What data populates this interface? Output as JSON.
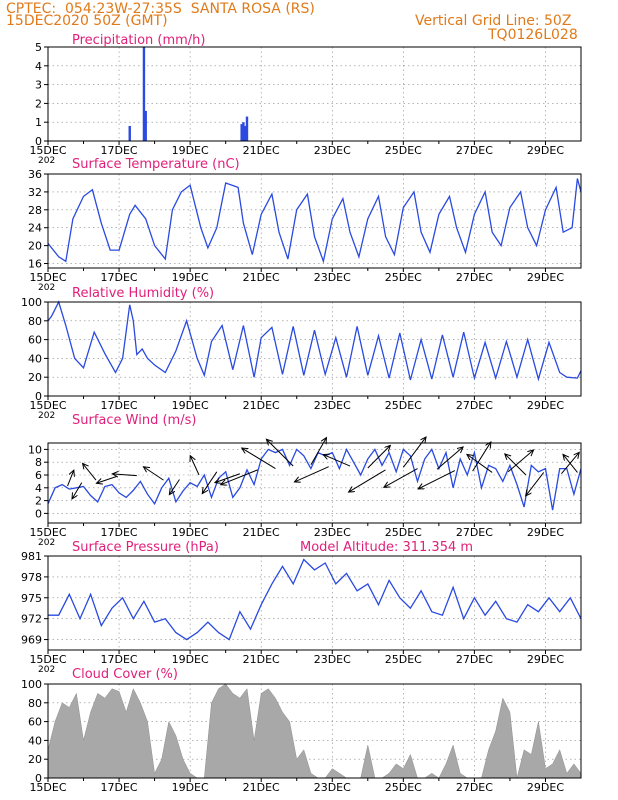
{
  "header": {
    "line1": "CPTEC:  054:23W-27:35S  SANTA ROSA (RS)",
    "line2": "15DEC2020 50Z (GMT)",
    "grid_note": "Vertical Grid Line: 50Z",
    "code": "TQ0126L028"
  },
  "colors": {
    "header": "#e07a1a",
    "title": "#e0207a",
    "series": "#2a4ae0",
    "cloud": "#a8a8a8",
    "axis": "#000000"
  },
  "x_axis": {
    "ticks": [
      {
        "day": 15,
        "label": "15DEC"
      },
      {
        "day": 17,
        "label": "17DEC"
      },
      {
        "day": 19,
        "label": "19DEC"
      },
      {
        "day": 21,
        "label": "21DEC"
      },
      {
        "day": 23,
        "label": "23DEC"
      },
      {
        "day": 25,
        "label": "25DEC"
      },
      {
        "day": 27,
        "label": "27DEC"
      },
      {
        "day": 29,
        "label": "29DEC"
      }
    ],
    "range": [
      15,
      30
    ],
    "sub_label": "202"
  },
  "chart_data": [
    {
      "type": "bar",
      "title": "Precipitation  (mm/h)",
      "ylim": [
        0,
        5
      ],
      "yticks": [
        "0",
        "1",
        "2",
        "3",
        "4",
        "5"
      ],
      "x": [
        17.3,
        17.7,
        17.75,
        20.45,
        20.5,
        20.55,
        20.6
      ],
      "values": [
        0.8,
        5.0,
        1.6,
        0.9,
        1.0,
        0.8,
        1.3
      ]
    },
    {
      "type": "line",
      "title": "Surface Temperature (nC)",
      "ylim": [
        15,
        36
      ],
      "yticks": [
        "16",
        "20",
        "24",
        "28",
        "32",
        "36"
      ],
      "ytick_values": [
        16,
        20,
        24,
        28,
        32,
        36
      ],
      "x": [
        15.0,
        15.3,
        15.5,
        15.7,
        16.0,
        16.25,
        16.5,
        16.75,
        17.0,
        17.3,
        17.45,
        17.55,
        17.75,
        18.0,
        18.3,
        18.5,
        18.75,
        19.0,
        19.3,
        19.5,
        19.75,
        20.0,
        20.35,
        20.5,
        20.75,
        21.0,
        21.3,
        21.5,
        21.75,
        22.0,
        22.3,
        22.5,
        22.75,
        23.0,
        23.3,
        23.5,
        23.75,
        24.0,
        24.3,
        24.5,
        24.75,
        25.0,
        25.3,
        25.5,
        25.75,
        26.0,
        26.3,
        26.5,
        26.75,
        27.0,
        27.3,
        27.5,
        27.75,
        28.0,
        28.3,
        28.5,
        28.75,
        29.0,
        29.3,
        29.5,
        29.75,
        29.9,
        30.0
      ],
      "values": [
        20.5,
        17.5,
        16.5,
        26,
        31,
        32.5,
        25,
        19,
        19,
        27,
        29,
        28,
        26,
        20,
        17,
        28,
        32,
        33.5,
        24,
        19.5,
        24,
        34,
        33,
        25,
        18,
        27,
        31.5,
        23,
        17,
        28,
        31.5,
        22,
        16.5,
        26,
        30.5,
        23,
        17.5,
        26,
        31,
        22,
        18,
        28.5,
        32,
        23,
        18.5,
        27,
        31,
        24,
        18.5,
        27,
        32,
        23,
        20,
        28.5,
        32,
        24,
        20,
        28,
        33,
        23,
        24,
        35,
        32
      ]
    },
    {
      "type": "line",
      "title": "Relative Humidity (%)",
      "ylim": [
        0,
        100
      ],
      "yticks": [
        "0",
        "20",
        "40",
        "60",
        "80",
        "100"
      ],
      "ytick_values": [
        0,
        20,
        40,
        60,
        80,
        100
      ],
      "x": [
        15.0,
        15.1,
        15.3,
        15.5,
        15.75,
        16.0,
        16.3,
        16.6,
        16.9,
        17.1,
        17.3,
        17.4,
        17.5,
        17.65,
        17.8,
        18.0,
        18.3,
        18.6,
        18.9,
        19.2,
        19.4,
        19.6,
        19.9,
        20.2,
        20.5,
        20.8,
        21.0,
        21.3,
        21.6,
        21.9,
        22.2,
        22.5,
        22.8,
        23.1,
        23.4,
        23.7,
        24.0,
        24.3,
        24.6,
        24.9,
        25.2,
        25.5,
        25.8,
        26.1,
        26.4,
        26.7,
        27.0,
        27.3,
        27.6,
        27.9,
        28.2,
        28.5,
        28.8,
        29.1,
        29.4,
        29.6,
        29.9,
        30.0
      ],
      "values": [
        80,
        85,
        100,
        75,
        40,
        30,
        68,
        45,
        25,
        40,
        97,
        80,
        44,
        50,
        40,
        33,
        25,
        48,
        80,
        40,
        22,
        58,
        75,
        28,
        75,
        20,
        62,
        73,
        23,
        74,
        22,
        70,
        23,
        62,
        20,
        74,
        22,
        64,
        19,
        67,
        17,
        60,
        18,
        65,
        20,
        68,
        19,
        57,
        19,
        58,
        20,
        60,
        18,
        57,
        25,
        20,
        19,
        27
      ]
    },
    {
      "type": "line",
      "title": "Surface Wind (m/s)",
      "ylim": [
        -1.5,
        11
      ],
      "yticks": [
        "0",
        "2",
        "4",
        "6",
        "8",
        "10"
      ],
      "ytick_values": [
        0,
        2,
        4,
        6,
        8,
        10
      ],
      "x": [
        15.0,
        15.2,
        15.4,
        15.6,
        15.8,
        16.0,
        16.2,
        16.4,
        16.6,
        16.8,
        17.0,
        17.2,
        17.4,
        17.6,
        17.8,
        18.0,
        18.2,
        18.4,
        18.6,
        18.8,
        19.0,
        19.2,
        19.4,
        19.6,
        19.8,
        20.0,
        20.2,
        20.4,
        20.6,
        20.8,
        21.0,
        21.2,
        21.4,
        21.6,
        21.8,
        22.0,
        22.2,
        22.4,
        22.6,
        22.8,
        23.0,
        23.2,
        23.4,
        23.6,
        23.8,
        24.0,
        24.2,
        24.4,
        24.6,
        24.8,
        25.0,
        25.2,
        25.4,
        25.6,
        25.8,
        26.0,
        26.2,
        26.4,
        26.6,
        26.8,
        27.0,
        27.2,
        27.4,
        27.6,
        27.8,
        28.0,
        28.2,
        28.4,
        28.6,
        28.8,
        29.0,
        29.2,
        29.4,
        29.6,
        29.8,
        30.0
      ],
      "values": [
        1.5,
        4,
        4.5,
        3.8,
        4,
        4.2,
        2.8,
        1.8,
        4.2,
        4.5,
        3.2,
        2.5,
        3.6,
        5,
        3,
        1.5,
        4,
        5.5,
        1.8,
        3.5,
        4.8,
        4.2,
        6,
        2.5,
        5.5,
        6.5,
        2.5,
        4,
        6.8,
        4.5,
        8.5,
        10,
        9.5,
        10,
        7.5,
        10,
        9,
        7,
        9.5,
        9,
        9.5,
        7,
        10,
        8,
        6,
        8.5,
        10,
        7.5,
        9.5,
        6.5,
        10,
        9,
        5,
        8.5,
        10,
        7,
        9.5,
        4,
        8.5,
        6,
        9.5,
        4,
        7.5,
        7,
        5,
        7.5,
        4.5,
        1,
        7.5,
        6.5,
        7,
        0.5,
        7,
        7,
        3,
        7
      ]
    },
    {
      "type": "line",
      "title": "Surface Pressure (hPa)",
      "ylim": [
        967.5,
        981
      ],
      "yticks": [
        "969",
        "972",
        "975",
        "978",
        "981"
      ],
      "ytick_values": [
        969,
        972,
        975,
        978,
        981
      ],
      "x": [
        15.0,
        15.3,
        15.6,
        15.9,
        16.2,
        16.5,
        16.8,
        17.1,
        17.4,
        17.7,
        18.0,
        18.3,
        18.6,
        18.9,
        19.2,
        19.5,
        19.8,
        20.1,
        20.4,
        20.7,
        21.0,
        21.3,
        21.6,
        21.9,
        22.2,
        22.5,
        22.8,
        23.1,
        23.4,
        23.7,
        24.0,
        24.3,
        24.6,
        24.9,
        25.2,
        25.5,
        25.8,
        26.1,
        26.4,
        26.7,
        27.0,
        27.3,
        27.6,
        27.9,
        28.2,
        28.5,
        28.8,
        29.1,
        29.4,
        29.7,
        30.0
      ],
      "values": [
        972.5,
        972.5,
        975.5,
        972,
        975.5,
        971,
        973.5,
        975,
        972,
        974.5,
        971.5,
        972,
        970,
        969,
        970,
        971.5,
        970,
        969,
        973,
        970.5,
        974,
        977,
        979.5,
        977,
        980.5,
        979,
        980,
        977,
        978.5,
        976,
        977,
        974,
        977.5,
        975,
        973.5,
        976,
        973,
        972.5,
        976.5,
        972,
        975,
        972.5,
        974.5,
        972,
        971.5,
        974,
        973,
        975,
        973,
        975,
        972
      ]
    },
    {
      "type": "bar",
      "title": "Cloud Cover (%)",
      "ylim": [
        0,
        100
      ],
      "yticks": [
        "0",
        "20",
        "40",
        "60",
        "80",
        "100"
      ],
      "ytick_values": [
        0,
        20,
        40,
        60,
        80,
        100
      ],
      "x": [
        15.0,
        15.2,
        15.4,
        15.6,
        15.8,
        16.0,
        16.2,
        16.4,
        16.6,
        16.8,
        17.0,
        17.2,
        17.4,
        17.6,
        17.8,
        18.0,
        18.2,
        18.4,
        18.6,
        18.8,
        19.0,
        19.2,
        19.4,
        19.6,
        19.8,
        20.0,
        20.2,
        20.4,
        20.6,
        20.8,
        21.0,
        21.2,
        21.4,
        21.6,
        21.8,
        22.0,
        22.2,
        22.4,
        22.6,
        22.8,
        23.0,
        23.2,
        23.4,
        23.6,
        23.8,
        24.0,
        24.2,
        24.4,
        24.6,
        24.8,
        25.0,
        25.2,
        25.4,
        25.6,
        25.8,
        26.0,
        26.2,
        26.4,
        26.6,
        26.8,
        27.0,
        27.2,
        27.4,
        27.6,
        27.8,
        28.0,
        28.2,
        28.4,
        28.6,
        28.8,
        29.0,
        29.2,
        29.4,
        29.6,
        29.8,
        30.0
      ],
      "values": [
        30,
        60,
        80,
        75,
        90,
        40,
        70,
        90,
        85,
        95,
        92,
        70,
        95,
        80,
        60,
        5,
        20,
        60,
        45,
        20,
        5,
        0,
        0,
        80,
        95,
        100,
        90,
        85,
        95,
        40,
        90,
        95,
        85,
        70,
        60,
        20,
        30,
        5,
        0,
        0,
        10,
        5,
        0,
        0,
        0,
        35,
        0,
        0,
        5,
        15,
        10,
        25,
        0,
        0,
        5,
        0,
        15,
        35,
        5,
        0,
        0,
        0,
        30,
        50,
        85,
        70,
        0,
        30,
        25,
        60,
        10,
        15,
        30,
        5,
        15,
        5
      ]
    }
  ],
  "wind_vectors": [
    {
      "day": 15.55,
      "speed": 4.3,
      "u": 0.2,
      "v": 0.5
    },
    {
      "day": 15.95,
      "speed": 4.8,
      "u": -0.3,
      "v": -0.5
    },
    {
      "day": 16.35,
      "speed": 5.2,
      "u": -0.4,
      "v": 0.5
    },
    {
      "day": 16.95,
      "speed": 5.8,
      "u": -0.6,
      "v": -0.2
    },
    {
      "day": 17.5,
      "speed": 5.9,
      "u": -0.7,
      "v": 0.05
    },
    {
      "day": 18.25,
      "speed": 5.2,
      "u": -0.6,
      "v": 0.4
    },
    {
      "day": 18.7,
      "speed": 5.3,
      "u": -0.3,
      "v": -0.45
    },
    {
      "day": 19.25,
      "speed": 6.0,
      "u": -0.25,
      "v": 0.55
    },
    {
      "day": 19.75,
      "speed": 6.5,
      "u": -0.4,
      "v": -0.6
    },
    {
      "day": 20.4,
      "speed": 6.2,
      "u": -0.7,
      "v": -0.25
    },
    {
      "day": 20.9,
      "speed": 6.8,
      "u": -1.0,
      "v": -0.4
    },
    {
      "day": 21.4,
      "speed": 7.0,
      "u": -0.9,
      "v": 0.55
    },
    {
      "day": 21.9,
      "speed": 7.4,
      "u": -0.7,
      "v": 0.7
    },
    {
      "day": 22.4,
      "speed": 7.6,
      "u": 0.4,
      "v": 0.7
    },
    {
      "day": 22.9,
      "speed": 7.3,
      "u": -0.9,
      "v": -0.4
    },
    {
      "day": 23.5,
      "speed": 7.4,
      "u": -0.7,
      "v": 0.3
    },
    {
      "day": 24.0,
      "speed": 7.1,
      "u": 0.6,
      "v": 0.6
    },
    {
      "day": 24.5,
      "speed": 6.8,
      "u": -1.0,
      "v": -0.6
    },
    {
      "day": 25.0,
      "speed": 7.2,
      "u": 0.6,
      "v": 0.8
    },
    {
      "day": 25.4,
      "speed": 7.0,
      "u": -0.9,
      "v": -0.5
    },
    {
      "day": 25.95,
      "speed": 6.9,
      "u": 0.7,
      "v": 0.6
    },
    {
      "day": 26.45,
      "speed": 6.7,
      "u": -1.0,
      "v": -0.5
    },
    {
      "day": 26.95,
      "speed": 6.6,
      "u": 0.5,
      "v": 0.8
    },
    {
      "day": 27.5,
      "speed": 6.4,
      "u": -0.7,
      "v": 0.5
    },
    {
      "day": 27.95,
      "speed": 6.5,
      "u": 0.7,
      "v": 0.6
    },
    {
      "day": 28.45,
      "speed": 6.0,
      "u": -0.6,
      "v": 0.6
    },
    {
      "day": 28.95,
      "speed": 6.4,
      "u": -0.5,
      "v": -0.65
    },
    {
      "day": 29.45,
      "speed": 6.2,
      "u": 0.5,
      "v": 0.6
    },
    {
      "day": 29.9,
      "speed": 6.4,
      "u": -0.4,
      "v": 0.5
    }
  ],
  "model_altitude": "Model Altitude: 311.354 m"
}
